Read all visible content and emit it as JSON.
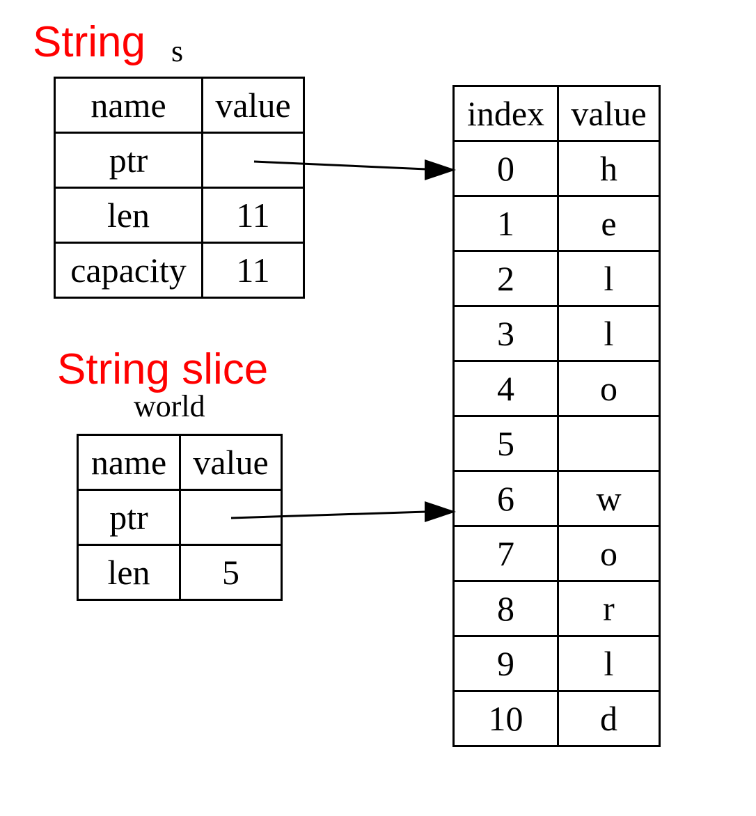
{
  "labels": {
    "string_heading": "String",
    "string_var": "s",
    "slice_heading": "String slice",
    "slice_var": "world"
  },
  "colors": {
    "annotation": "#ff0000",
    "lines": "#000000"
  },
  "string_s": {
    "header": [
      "name",
      "value"
    ],
    "rows": [
      {
        "name": "ptr",
        "value": ""
      },
      {
        "name": "len",
        "value": "11"
      },
      {
        "name": "capacity",
        "value": "11"
      }
    ]
  },
  "slice_world": {
    "header": [
      "name",
      "value"
    ],
    "rows": [
      {
        "name": "ptr",
        "value": ""
      },
      {
        "name": "len",
        "value": "5"
      }
    ]
  },
  "bytes": {
    "header": [
      "index",
      "value"
    ],
    "rows": [
      {
        "index": "0",
        "value": "h"
      },
      {
        "index": "1",
        "value": "e"
      },
      {
        "index": "2",
        "value": "l"
      },
      {
        "index": "3",
        "value": "l"
      },
      {
        "index": "4",
        "value": "o"
      },
      {
        "index": "5",
        "value": ""
      },
      {
        "index": "6",
        "value": "w"
      },
      {
        "index": "7",
        "value": "o"
      },
      {
        "index": "8",
        "value": "r"
      },
      {
        "index": "9",
        "value": "l"
      },
      {
        "index": "10",
        "value": "d"
      }
    ]
  },
  "pointers": [
    {
      "from": "s.ptr",
      "to_index": "0"
    },
    {
      "from": "world.ptr",
      "to_index": "6"
    }
  ]
}
